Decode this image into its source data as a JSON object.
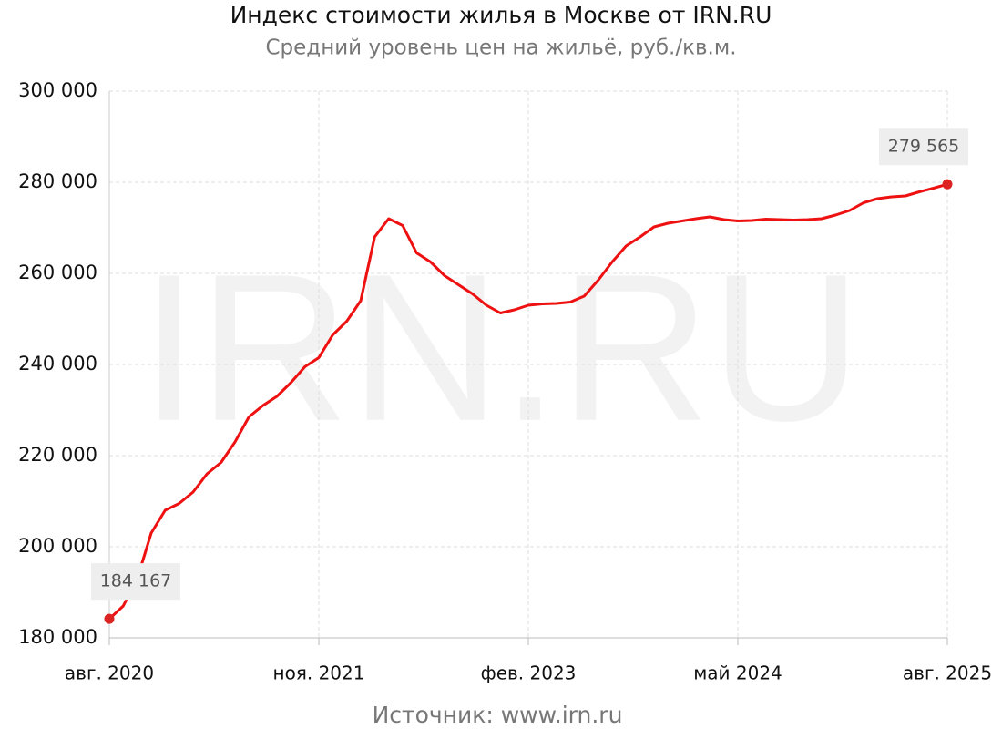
{
  "chart_data": {
    "type": "line",
    "title": "Индекс стоимости жилья в Москве от IRN.RU",
    "subtitle": "Средний уровень цен на жильё, руб./кв.м.",
    "watermark": "IRN.RU",
    "source": "Источник: www.irn.ru",
    "x": [
      "2020-08",
      "2020-09",
      "2020-10",
      "2020-11",
      "2020-12",
      "2021-01",
      "2021-02",
      "2021-03",
      "2021-04",
      "2021-05",
      "2021-06",
      "2021-07",
      "2021-08",
      "2021-09",
      "2021-10",
      "2021-11",
      "2021-12",
      "2022-01",
      "2022-02",
      "2022-03",
      "2022-04",
      "2022-05",
      "2022-06",
      "2022-07",
      "2022-08",
      "2022-09",
      "2022-10",
      "2022-11",
      "2022-12",
      "2023-01",
      "2023-02",
      "2023-03",
      "2023-04",
      "2023-05",
      "2023-06",
      "2023-07",
      "2023-08",
      "2023-09",
      "2023-10",
      "2023-11",
      "2023-12",
      "2024-01",
      "2024-02",
      "2024-03",
      "2024-04",
      "2024-05",
      "2024-06",
      "2024-07",
      "2024-08",
      "2024-09",
      "2024-10",
      "2024-11",
      "2024-12",
      "2025-01",
      "2025-02",
      "2025-03",
      "2025-04",
      "2025-05",
      "2025-06",
      "2025-07",
      "2025-08"
    ],
    "series": [
      {
        "name": "Индекс стоимости жилья",
        "color": "#ee1111",
        "values": [
          184167,
          187000,
          193000,
          203000,
          208000,
          209500,
          212000,
          216000,
          218500,
          223000,
          228500,
          231000,
          233000,
          236000,
          239500,
          241500,
          246500,
          249500,
          254000,
          268000,
          272000,
          270500,
          264500,
          262500,
          259500,
          257500,
          255500,
          253000,
          251300,
          252000,
          253000,
          253300,
          253400,
          253700,
          255000,
          258500,
          262500,
          266000,
          268000,
          270200,
          271000,
          271500,
          272000,
          272400,
          271800,
          271500,
          271600,
          271900,
          271800,
          271700,
          271800,
          272000,
          272800,
          273800,
          275500,
          276400,
          276800,
          277000,
          277900,
          278700,
          279565
        ],
        "value_labels": [
          "184 167",
          null,
          null,
          null,
          null,
          null,
          null,
          null,
          null,
          null,
          null,
          null,
          null,
          null,
          null,
          null,
          null,
          null,
          null,
          null,
          null,
          null,
          null,
          null,
          null,
          null,
          null,
          null,
          null,
          null,
          null,
          null,
          null,
          null,
          null,
          null,
          null,
          null,
          null,
          null,
          null,
          null,
          null,
          null,
          null,
          null,
          null,
          null,
          null,
          null,
          null,
          null,
          null,
          null,
          null,
          null,
          null,
          null,
          null,
          null,
          "279 565"
        ]
      }
    ],
    "xlim": [
      "2020-08",
      "2025-08"
    ],
    "xticks": [
      {
        "value": "2020-08",
        "label": "авг. 2020"
      },
      {
        "value": "2021-11",
        "label": "ноя. 2021"
      },
      {
        "value": "2023-02",
        "label": "фев. 2023"
      },
      {
        "value": "2024-05",
        "label": "май 2024"
      },
      {
        "value": "2025-08",
        "label": "авг. 2025"
      }
    ],
    "ylim": [
      180000,
      300000
    ],
    "yticks": [
      {
        "value": 180000,
        "label": "180 000"
      },
      {
        "value": 200000,
        "label": "200 000"
      },
      {
        "value": 220000,
        "label": "220 000"
      },
      {
        "value": 240000,
        "label": "240 000"
      },
      {
        "value": 260000,
        "label": "260 000"
      },
      {
        "value": 280000,
        "label": "280 000"
      },
      {
        "value": 300000,
        "label": "300 000"
      }
    ],
    "grid": true
  }
}
